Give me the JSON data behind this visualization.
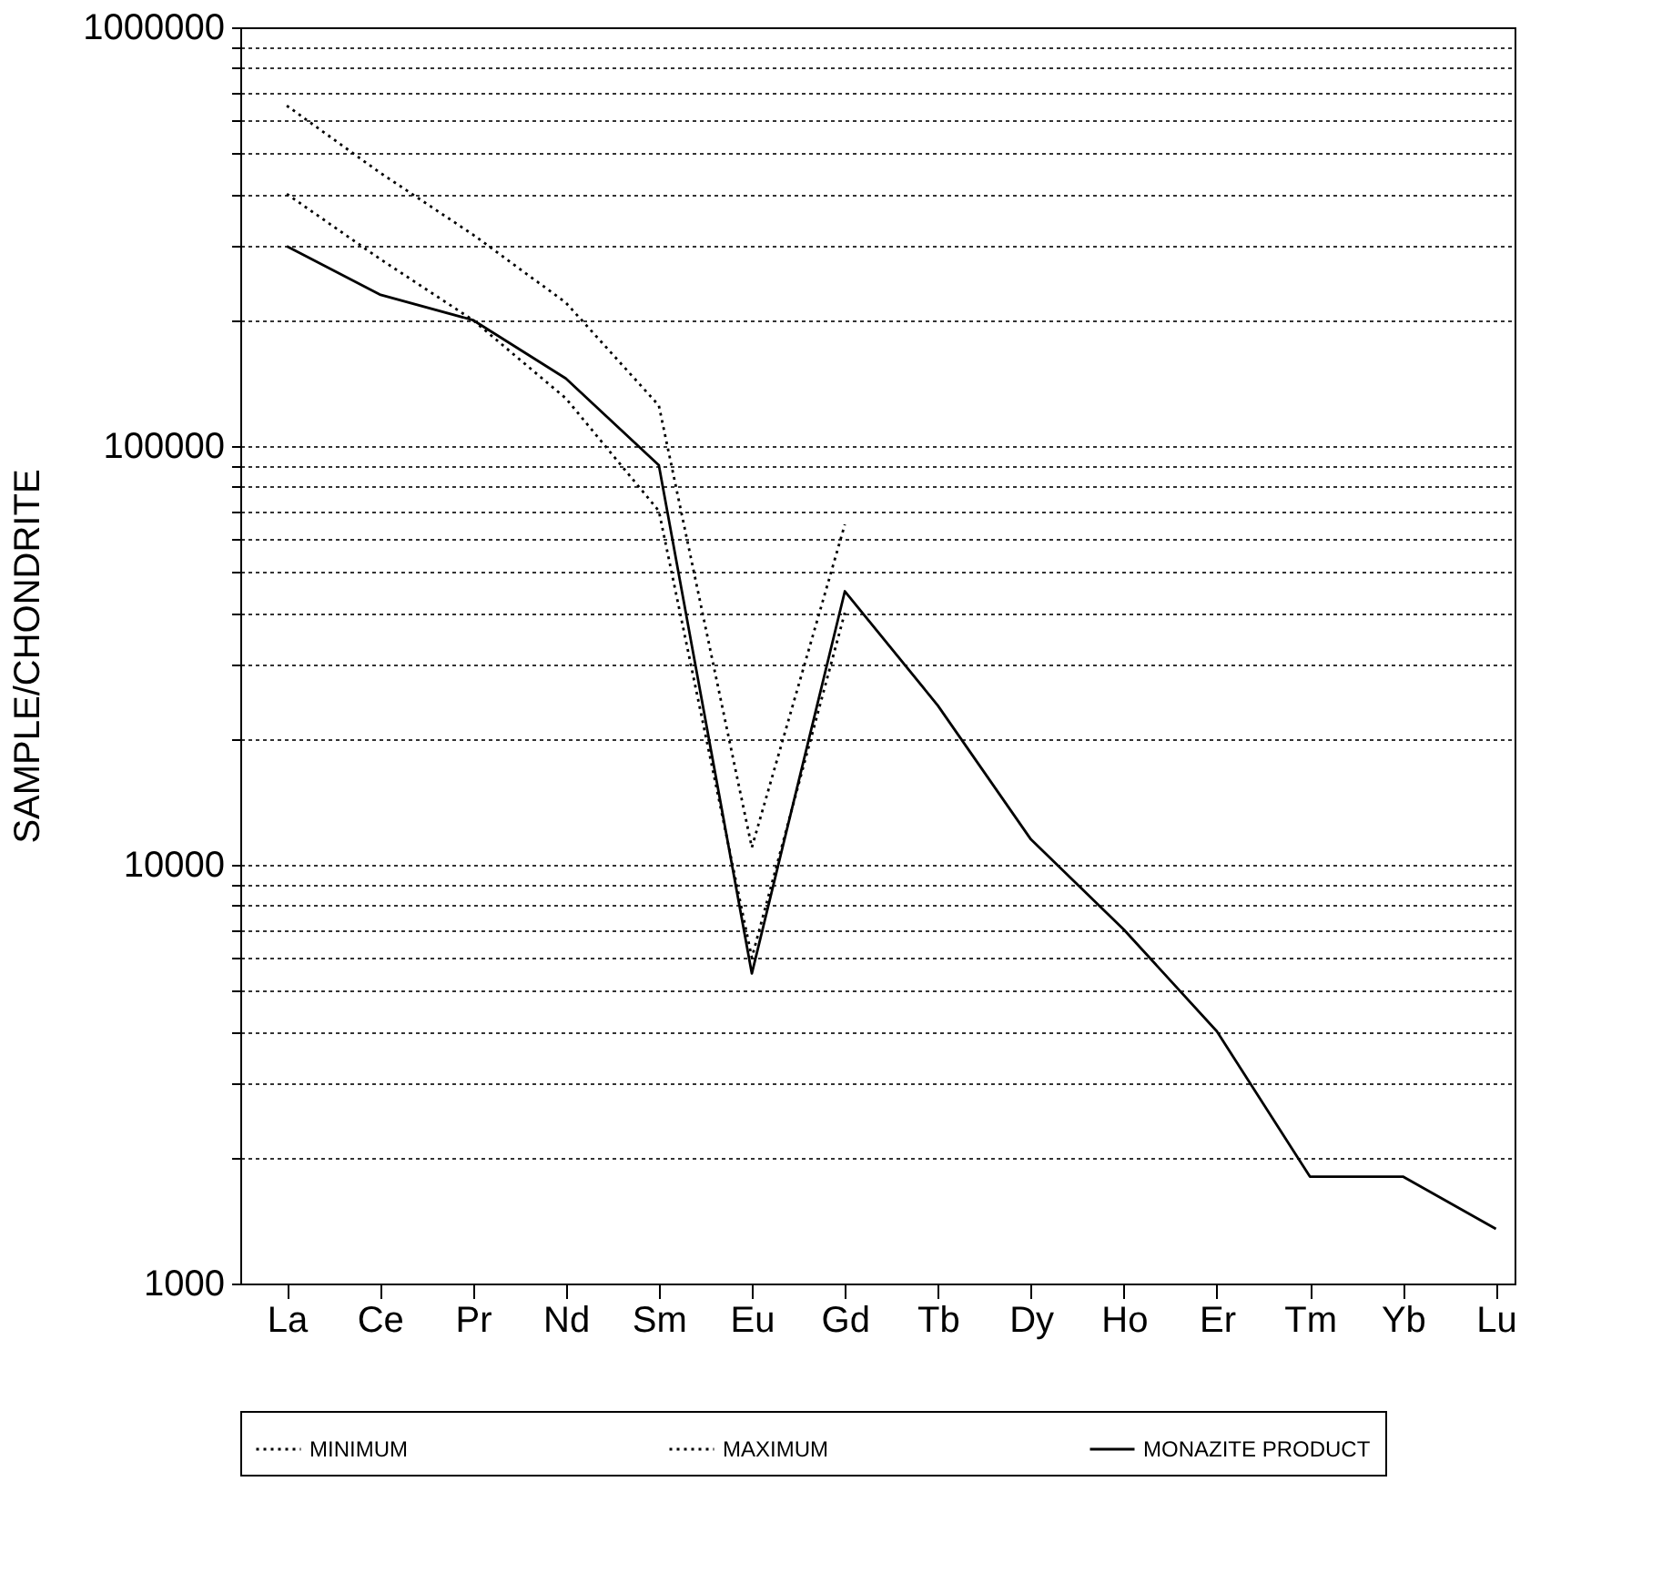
{
  "chart_data": {
    "type": "line",
    "ylabel": "SAMPLE/CHONDRITE",
    "categories": [
      "La",
      "Ce",
      "Pr",
      "Nd",
      "Sm",
      "Eu",
      "Gd",
      "Tb",
      "Dy",
      "Ho",
      "Er",
      "Tm",
      "Yb",
      "Lu"
    ],
    "series": [
      {
        "name": "MINIMUM",
        "color": "#000000",
        "line_style": "dotted",
        "values": [
          400000,
          280000,
          200000,
          130000,
          70000,
          6000,
          40000,
          null,
          null,
          null,
          null,
          null,
          null,
          null
        ]
      },
      {
        "name": "MAXIMUM",
        "color": "#000000",
        "line_style": "dotted",
        "values": [
          650000,
          450000,
          320000,
          220000,
          125000,
          11000,
          65000,
          null,
          null,
          null,
          null,
          null,
          null,
          null
        ]
      },
      {
        "name": "MONAZITE PRODUCT",
        "color": "#000000",
        "line_style": "solid",
        "values": [
          300000,
          230000,
          200000,
          145000,
          90000,
          5500,
          45000,
          24000,
          11500,
          7000,
          4000,
          1800,
          1800,
          1350
        ]
      }
    ],
    "log": true,
    "ylim": [
      1000,
      1000000
    ],
    "yticks": [
      1000,
      {
        "value": 2000,
        "label": null
      },
      {
        "value": 3000,
        "label": null
      },
      {
        "value": 4000,
        "label": null
      },
      {
        "value": 5000,
        "label": null
      },
      {
        "value": 6000,
        "label": null
      },
      {
        "value": 7000,
        "label": null
      },
      {
        "value": 8000,
        "label": null
      },
      {
        "value": 9000,
        "label": null
      },
      10000,
      {
        "value": 20000,
        "label": null
      },
      {
        "value": 30000,
        "label": null
      },
      {
        "value": 40000,
        "label": null
      },
      {
        "value": 50000,
        "label": null
      },
      {
        "value": 60000,
        "label": null
      },
      {
        "value": 70000,
        "label": null
      },
      {
        "value": 80000,
        "label": null
      },
      {
        "value": 90000,
        "label": null
      },
      100000,
      {
        "value": 200000,
        "label": null
      },
      {
        "value": 300000,
        "label": null
      },
      {
        "value": 400000,
        "label": null
      },
      {
        "value": 500000,
        "label": null
      },
      {
        "value": 600000,
        "label": null
      },
      {
        "value": 700000,
        "label": null
      },
      {
        "value": 800000,
        "label": null
      },
      {
        "value": 900000,
        "label": null
      },
      1000000
    ],
    "grid": "y",
    "legend": "bottom",
    "marker": "none"
  }
}
